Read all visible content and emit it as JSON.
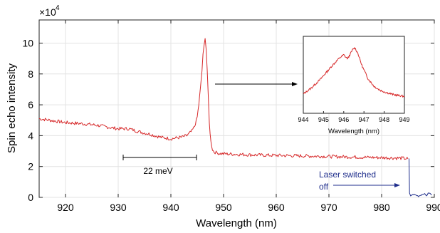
{
  "chart_data": [
    {
      "id": "main",
      "type": "line",
      "title": "",
      "xlabel": "Wavelength (nm)",
      "ylabel": "Spin echo intensity",
      "y_multiplier_label": "×10",
      "y_multiplier_exponent": "4",
      "xlim": [
        915,
        990
      ],
      "ylim": [
        0,
        115000
      ],
      "xticks": [
        920,
        930,
        940,
        950,
        960,
        970,
        980,
        990
      ],
      "yticks": [
        0,
        20000,
        40000,
        60000,
        80000,
        100000
      ],
      "ytick_labels": [
        "0",
        "2",
        "4",
        "6",
        "8",
        "10"
      ],
      "grid": true,
      "series": [
        {
          "color": "#d62728",
          "x": [
            915,
            917,
            920,
            923,
            926,
            928,
            930,
            932,
            934,
            936,
            938,
            939,
            940,
            941,
            942,
            943,
            944,
            944.5,
            945,
            945.3,
            945.6,
            945.9,
            946.1,
            946.3,
            946.5,
            946.7,
            946.9,
            947.1,
            947.3,
            947.6,
            947.9,
            948.2,
            948.6,
            949,
            950,
            952,
            955,
            958,
            960,
            963,
            966,
            970,
            974,
            978,
            982,
            984,
            985
          ],
          "y": [
            51000,
            50000,
            48500,
            47800,
            46800,
            45500,
            44500,
            44500,
            42500,
            41000,
            39000,
            38500,
            38000,
            38500,
            39000,
            40000,
            43000,
            46000,
            52000,
            60000,
            70000,
            82000,
            92000,
            98000,
            104000,
            96000,
            82000,
            65000,
            48000,
            36000,
            31000,
            29500,
            29000,
            28700,
            28200,
            28000,
            27600,
            27300,
            27200,
            27000,
            26800,
            26500,
            26200,
            25900,
            25600,
            25400,
            25000
          ]
        },
        {
          "color": "#1f2e8c",
          "x": [
            985.2,
            985.3,
            985.5,
            986,
            986.5,
            987,
            987.5,
            988,
            988.5,
            989,
            989.5
          ],
          "y": [
            25000,
            2500,
            1000,
            2000,
            1500,
            800,
            1600,
            2500,
            1200,
            3000,
            1500
          ]
        }
      ],
      "annotations": {
        "scale_bar_label": "22 meV",
        "laser_note_line1": "Laser switched",
        "laser_note_line2": "off"
      }
    },
    {
      "id": "inset",
      "type": "line",
      "title": "",
      "xlabel": "Wavelength (nm)",
      "ylabel": "",
      "xlim": [
        944,
        949
      ],
      "ylim": [
        0,
        1
      ],
      "xticks": [
        944,
        945,
        946,
        947,
        948,
        949
      ],
      "grid": false,
      "series": [
        {
          "color": "#d62728",
          "x": [
            944,
            944.4,
            944.8,
            945.2,
            945.5,
            945.8,
            946.0,
            946.1,
            946.2,
            946.3,
            946.45,
            946.55,
            946.7,
            946.9,
            947.2,
            947.5,
            947.8,
            948.1,
            948.5,
            949
          ],
          "y": [
            0.25,
            0.33,
            0.43,
            0.55,
            0.64,
            0.72,
            0.76,
            0.73,
            0.71,
            0.76,
            0.83,
            0.85,
            0.78,
            0.62,
            0.45,
            0.35,
            0.3,
            0.27,
            0.24,
            0.22
          ]
        }
      ]
    }
  ]
}
